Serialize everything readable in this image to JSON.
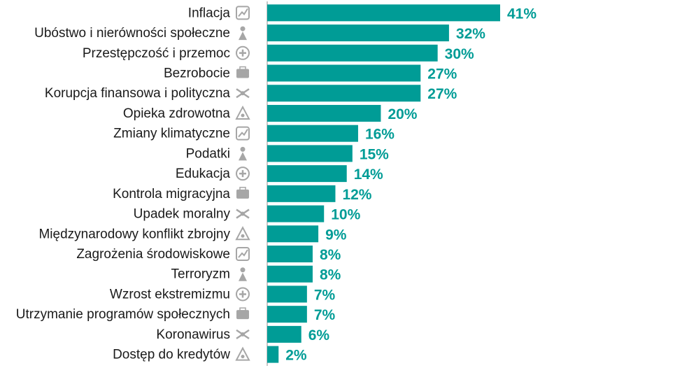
{
  "chart_data": {
    "type": "bar",
    "orientation": "horizontal",
    "categories": [
      "Inflacja",
      "Ubóstwo i nierówności społeczne",
      "Przestępczość i przemoc",
      "Bezrobocie",
      "Korupcja finansowa i polityczna",
      "Opieka zdrowotna",
      "Zmiany klimatyczne",
      "Podatki",
      "Edukacja",
      "Kontrola migracyjna",
      "Upadek moralny",
      "Międzynarodowy konflikt zbrojny",
      "Zagrożenia środowiskowe",
      "Terroryzm",
      "Wzrost ekstremizmu",
      "Utrzymanie programów społecznych",
      "Koronawirus",
      "Dostęp do kredytów"
    ],
    "values": [
      41,
      32,
      30,
      27,
      27,
      20,
      16,
      15,
      14,
      12,
      10,
      9,
      8,
      8,
      7,
      7,
      6,
      2
    ],
    "value_labels": [
      "41%",
      "32%",
      "30%",
      "27%",
      "27%",
      "20%",
      "16%",
      "15%",
      "14%",
      "12%",
      "10%",
      "9%",
      "8%",
      "8%",
      "7%",
      "7%",
      "6%",
      "2%"
    ],
    "icons": [
      "rising-chart-icon",
      "poor-person-icon",
      "gun-hand-icon",
      "unemployed-person-icon",
      "money-bag-hand-icon",
      "ambulance-cross-icon",
      "burning-globe-icon",
      "tax-money-icon",
      "graduation-cap-icon",
      "suitcase-icon",
      "fallen-figures-icon",
      "globe-target-icon",
      "swan-pollution-icon",
      "crossed-weapons-icon",
      "balaclava-mask-icon",
      "person-pedestal-icon",
      "biohazard-warning-icon",
      "credit-card-hand-icon"
    ],
    "title": "",
    "xlabel": "",
    "ylabel": "",
    "xlim": [
      0,
      41
    ],
    "grid": false,
    "legend": "none",
    "bar_color": "#009c96",
    "label_color": "#009c96",
    "icon_color": "#a6a6a6",
    "axis_color": "#8c8c8c"
  }
}
